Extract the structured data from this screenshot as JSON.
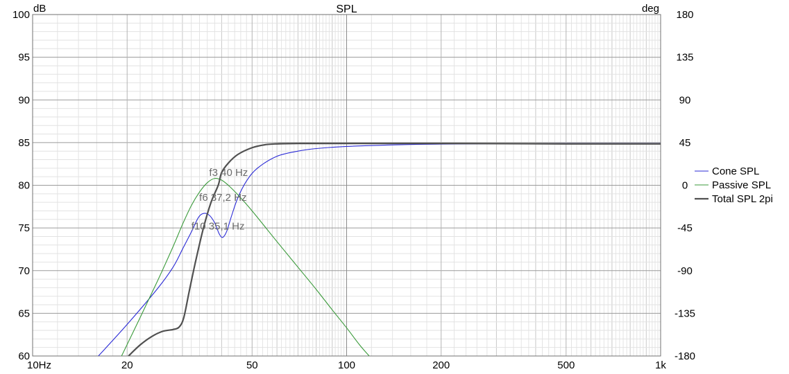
{
  "chart_data": {
    "type": "line",
    "title": "SPL",
    "y_unit_left": "dB",
    "y_unit_right": "deg",
    "x_scale": "log",
    "xlim": [
      10,
      1000
    ],
    "ylim": [
      60,
      100
    ],
    "y2lim": [
      -180,
      180
    ],
    "grid": true,
    "legend_position": "right",
    "x_ticks": [
      {
        "value": 10,
        "label": "10Hz"
      },
      {
        "value": 20,
        "label": "20"
      },
      {
        "value": 50,
        "label": "50"
      },
      {
        "value": 100,
        "label": "100"
      },
      {
        "value": 200,
        "label": "200"
      },
      {
        "value": 500,
        "label": "500"
      },
      {
        "value": 1000,
        "label": "1k"
      }
    ],
    "y_ticks": [
      60,
      65,
      70,
      75,
      80,
      85,
      90,
      95,
      100
    ],
    "y2_ticks": [
      -180,
      -135,
      -90,
      -45,
      0,
      45,
      90,
      135,
      180
    ],
    "series": [
      {
        "name": "Cone SPL",
        "color": "#2a2ad6",
        "width": 1.1,
        "points": [
          [
            16.2,
            60.0
          ],
          [
            20,
            63.7
          ],
          [
            25,
            67.9
          ],
          [
            28,
            70.4
          ],
          [
            30,
            72.5
          ],
          [
            32,
            74.5
          ],
          [
            33.7,
            76.2
          ],
          [
            35,
            76.7
          ],
          [
            36.5,
            76.5
          ],
          [
            38,
            75.6
          ],
          [
            39.3,
            74.3
          ],
          [
            40.3,
            73.9
          ],
          [
            41.5,
            74.6
          ],
          [
            43,
            76.4
          ],
          [
            45,
            78.5
          ],
          [
            48,
            80.5
          ],
          [
            52,
            82.0
          ],
          [
            60,
            83.4
          ],
          [
            70,
            84.0
          ],
          [
            80,
            84.3
          ],
          [
            100,
            84.55
          ],
          [
            150,
            84.75
          ],
          [
            200,
            84.82
          ],
          [
            500,
            84.9
          ],
          [
            1000,
            84.9
          ]
        ]
      },
      {
        "name": "Passive SPL",
        "color": "#3a9a3a",
        "width": 1.1,
        "points": [
          [
            19.2,
            60.0
          ],
          [
            22,
            64.5
          ],
          [
            25,
            68.8
          ],
          [
            28,
            72.8
          ],
          [
            30,
            75.4
          ],
          [
            32,
            77.6
          ],
          [
            34,
            79.2
          ],
          [
            36,
            80.3
          ],
          [
            38,
            80.8
          ],
          [
            40,
            80.6
          ],
          [
            42,
            80.0
          ],
          [
            45,
            78.9
          ],
          [
            50,
            77.0
          ],
          [
            60,
            73.4
          ],
          [
            70,
            70.4
          ],
          [
            80,
            67.8
          ],
          [
            90,
            65.4
          ],
          [
            100,
            63.3
          ],
          [
            110,
            61.3
          ],
          [
            118,
            60.0
          ]
        ]
      },
      {
        "name": "Total SPL 2pi",
        "color": "#505050",
        "width": 2.2,
        "points": [
          [
            20.2,
            60.0
          ],
          [
            22,
            61.3
          ],
          [
            24,
            62.3
          ],
          [
            26,
            62.9
          ],
          [
            28,
            63.1
          ],
          [
            29.3,
            63.4
          ],
          [
            30.3,
            64.5
          ],
          [
            31.5,
            67.5
          ],
          [
            33,
            71.0
          ],
          [
            35,
            75.0
          ],
          [
            37,
            78.0
          ],
          [
            39,
            80.0
          ],
          [
            40,
            81.5
          ],
          [
            42,
            82.6
          ],
          [
            45,
            83.6
          ],
          [
            50,
            84.4
          ],
          [
            55,
            84.75
          ],
          [
            60,
            84.85
          ],
          [
            70,
            84.9
          ],
          [
            100,
            84.9
          ],
          [
            200,
            84.9
          ],
          [
            500,
            84.85
          ],
          [
            1000,
            84.85
          ]
        ]
      }
    ],
    "annotations": [
      {
        "text": "f3 40 Hz",
        "x": 40,
        "y": 81.5
      },
      {
        "text": "f6 37,2 Hz",
        "x": 37.2,
        "y": 78.6
      },
      {
        "text": "f10 35,1 Hz",
        "x": 35.1,
        "y": 75.2
      }
    ]
  }
}
